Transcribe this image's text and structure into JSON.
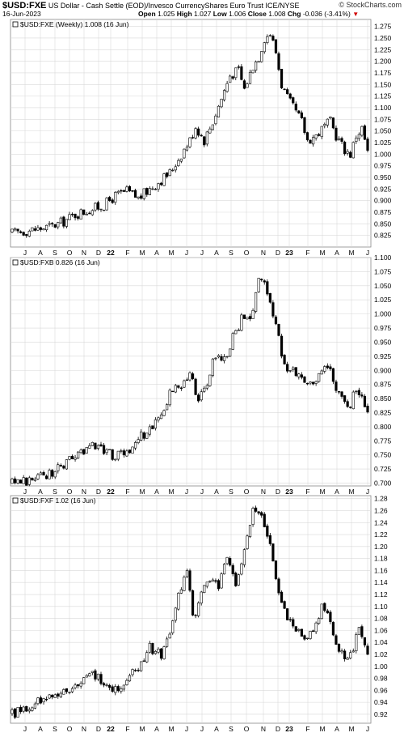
{
  "header": {
    "symbol": "$USD:FXE",
    "description": "US Dollar - Cash Settle (EOD)/Invesco CurrencyShares Euro Trust ICE/NYSE",
    "brand": "© StockCharts.com",
    "date": "16-Jun-2023",
    "open_label": "Open",
    "open": "1.025",
    "high_label": "High",
    "high": "1.027",
    "low_label": "Low",
    "low": "1.006",
    "close_label": "Close",
    "close": "1.008",
    "chg_label": "Chg",
    "chg": "-0.036 (-3.41%)",
    "chg_arrow_icon": "down-triangle-icon"
  },
  "colors": {
    "up": "#ffffff",
    "down": "#000000",
    "grid": "#d9d9d9"
  },
  "chart_data": [
    {
      "type": "candlestick",
      "title": "$USD:FXE (Weekly) 1.008 (16 Jun)",
      "ylim": [
        0.8,
        1.29
      ],
      "yticks": [
        "0.825",
        "0.850",
        "0.875",
        "0.900",
        "0.925",
        "0.950",
        "0.975",
        "1.000",
        "1.025",
        "1.050",
        "1.075",
        "1.100",
        "1.125",
        "1.150",
        "1.175",
        "1.200",
        "1.225",
        "1.250",
        "1.275"
      ],
      "x_ticks": [
        "J",
        "A",
        "S",
        "O",
        "N",
        "D",
        "22",
        "F",
        "M",
        "A",
        "M",
        "J",
        "J",
        "A",
        "S",
        "O",
        "N",
        "D",
        "23",
        "F",
        "M",
        "A",
        "M",
        "J"
      ],
      "anchors": [
        [
          0,
          0.83
        ],
        [
          5,
          0.835
        ],
        [
          10,
          0.84
        ],
        [
          14,
          0.845
        ],
        [
          18,
          0.855
        ],
        [
          22,
          0.87
        ],
        [
          27,
          0.88
        ],
        [
          32,
          0.89
        ],
        [
          36,
          0.91
        ],
        [
          40,
          0.92
        ],
        [
          44,
          0.905
        ],
        [
          48,
          0.925
        ],
        [
          52,
          0.945
        ],
        [
          55,
          0.96
        ],
        [
          58,
          0.99
        ],
        [
          62,
          1.03
        ],
        [
          64,
          1.06
        ],
        [
          67,
          1.03
        ],
        [
          70,
          1.07
        ],
        [
          73,
          1.12
        ],
        [
          76,
          1.17
        ],
        [
          79,
          1.18
        ],
        [
          81,
          1.14
        ],
        [
          84,
          1.19
        ],
        [
          86,
          1.21
        ],
        [
          88,
          1.25
        ],
        [
          90,
          1.26
        ],
        [
          92,
          1.22
        ],
        [
          94,
          1.15
        ],
        [
          96,
          1.12
        ],
        [
          98,
          1.1
        ],
        [
          101,
          1.07
        ],
        [
          103,
          1.03
        ],
        [
          106,
          1.04
        ],
        [
          109,
          1.06
        ],
        [
          111,
          1.07
        ],
        [
          113,
          1.04
        ],
        [
          116,
          1.01
        ],
        [
          118,
          1.0
        ],
        [
          120,
          1.04
        ],
        [
          122,
          1.055
        ],
        [
          124,
          1.008
        ]
      ],
      "last": 1.008
    },
    {
      "type": "candlestick",
      "title": "$USD:FXB 0.826 (16 Jun)",
      "ylim": [
        0.695,
        1.1
      ],
      "yticks": [
        "0.700",
        "0.725",
        "0.750",
        "0.775",
        "0.800",
        "0.825",
        "0.850",
        "0.875",
        "0.900",
        "0.925",
        "0.950",
        "0.975",
        "1.000",
        "1.025",
        "1.050",
        "1.075",
        "1.100"
      ],
      "x_ticks": [
        "J",
        "A",
        "S",
        "O",
        "N",
        "D",
        "22",
        "F",
        "M",
        "A",
        "M",
        "J",
        "J",
        "A",
        "S",
        "O",
        "N",
        "D",
        "23",
        "F",
        "M",
        "A",
        "M",
        "J"
      ],
      "anchors": [
        [
          0,
          0.7
        ],
        [
          6,
          0.705
        ],
        [
          12,
          0.715
        ],
        [
          18,
          0.73
        ],
        [
          24,
          0.755
        ],
        [
          28,
          0.77
        ],
        [
          32,
          0.76
        ],
        [
          36,
          0.745
        ],
        [
          40,
          0.755
        ],
        [
          44,
          0.78
        ],
        [
          48,
          0.795
        ],
        [
          52,
          0.82
        ],
        [
          55,
          0.86
        ],
        [
          58,
          0.87
        ],
        [
          62,
          0.89
        ],
        [
          65,
          0.85
        ],
        [
          68,
          0.88
        ],
        [
          71,
          0.93
        ],
        [
          74,
          0.92
        ],
        [
          77,
          0.96
        ],
        [
          80,
          0.99
        ],
        [
          83,
          0.985
        ],
        [
          86,
          1.07
        ],
        [
          88,
          1.05
        ],
        [
          90,
          1.02
        ],
        [
          92,
          0.98
        ],
        [
          94,
          0.93
        ],
        [
          96,
          0.905
        ],
        [
          98,
          0.9
        ],
        [
          101,
          0.895
        ],
        [
          103,
          0.87
        ],
        [
          106,
          0.88
        ],
        [
          109,
          0.915
        ],
        [
          111,
          0.905
        ],
        [
          113,
          0.87
        ],
        [
          116,
          0.85
        ],
        [
          118,
          0.835
        ],
        [
          120,
          0.87
        ],
        [
          122,
          0.86
        ],
        [
          124,
          0.826
        ]
      ],
      "last": 0.826
    },
    {
      "type": "candlestick",
      "title": "$USD:FXF 1.02 (16 Jun)",
      "ylim": [
        0.905,
        1.285
      ],
      "yticks": [
        "0.92",
        "0.94",
        "0.96",
        "0.98",
        "1.00",
        "1.02",
        "1.04",
        "1.06",
        "1.08",
        "1.10",
        "1.12",
        "1.14",
        "1.16",
        "1.18",
        "1.20",
        "1.22",
        "1.24",
        "1.26",
        "1.28"
      ],
      "x_ticks": [
        "J",
        "A",
        "S",
        "O",
        "N",
        "D",
        "22",
        "F",
        "M",
        "A",
        "M",
        "J",
        "J",
        "A",
        "S",
        "O",
        "N",
        "D",
        "23",
        "F",
        "M",
        "A",
        "M",
        "J"
      ],
      "anchors": [
        [
          0,
          0.92
        ],
        [
          6,
          0.935
        ],
        [
          12,
          0.945
        ],
        [
          18,
          0.96
        ],
        [
          24,
          0.97
        ],
        [
          28,
          0.985
        ],
        [
          32,
          0.975
        ],
        [
          36,
          0.96
        ],
        [
          40,
          0.98
        ],
        [
          44,
          1.0
        ],
        [
          48,
          1.03
        ],
        [
          52,
          1.02
        ],
        [
          55,
          1.05
        ],
        [
          58,
          1.12
        ],
        [
          61,
          1.16
        ],
        [
          63,
          1.08
        ],
        [
          66,
          1.12
        ],
        [
          69,
          1.15
        ],
        [
          72,
          1.13
        ],
        [
          75,
          1.18
        ],
        [
          78,
          1.14
        ],
        [
          81,
          1.19
        ],
        [
          84,
          1.27
        ],
        [
          86,
          1.26
        ],
        [
          88,
          1.23
        ],
        [
          90,
          1.2
        ],
        [
          92,
          1.14
        ],
        [
          94,
          1.11
        ],
        [
          96,
          1.08
        ],
        [
          99,
          1.06
        ],
        [
          102,
          1.05
        ],
        [
          105,
          1.06
        ],
        [
          108,
          1.1
        ],
        [
          110,
          1.09
        ],
        [
          112,
          1.05
        ],
        [
          115,
          1.02
        ],
        [
          117,
          1.01
        ],
        [
          119,
          1.03
        ],
        [
          121,
          1.06
        ],
        [
          124,
          1.02
        ]
      ],
      "last": 1.02
    }
  ]
}
